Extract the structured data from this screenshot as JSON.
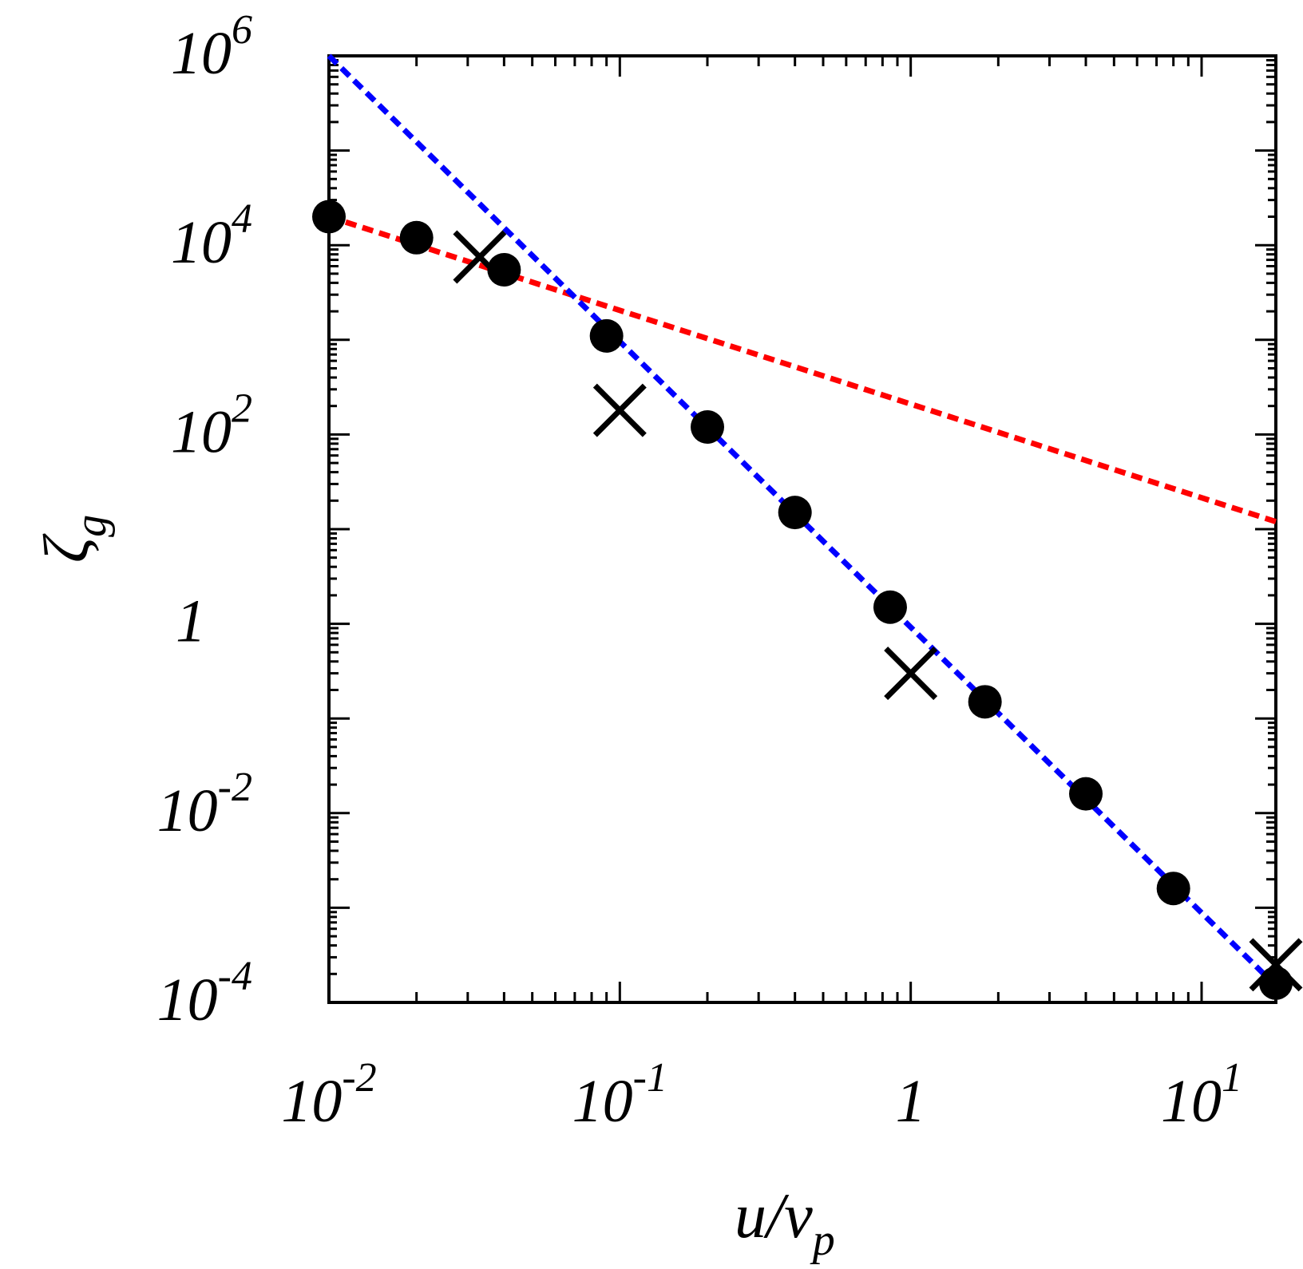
{
  "chart_data": {
    "type": "scatter",
    "x_scale": "log",
    "y_scale": "log",
    "xlim": [
      0.01,
      18
    ],
    "ylim": [
      0.0001,
      1000000
    ],
    "grid": false,
    "legend": "none",
    "xlabel": {
      "main": "u/v",
      "sub": "p"
    },
    "ylabel": {
      "main": "ζ",
      "sub": "g"
    },
    "x_ticks": [
      {
        "value": 0.01,
        "base": "10",
        "exp": "-2"
      },
      {
        "value": 0.1,
        "base": "10",
        "exp": "-1"
      },
      {
        "value": 1,
        "base": "1",
        "exp": ""
      },
      {
        "value": 10,
        "base": "10",
        "exp": "1"
      }
    ],
    "y_ticks": [
      {
        "value": 0.0001,
        "base": "10",
        "exp": "-4"
      },
      {
        "value": 0.01,
        "base": "10",
        "exp": "-2"
      },
      {
        "value": 1,
        "base": "1",
        "exp": ""
      },
      {
        "value": 100,
        "base": "10",
        "exp": "2"
      },
      {
        "value": 10000,
        "base": "10",
        "exp": "4"
      },
      {
        "value": 1000000,
        "base": "10",
        "exp": "6"
      }
    ],
    "series": [
      {
        "marker": "circle",
        "color": "#000000",
        "points": [
          {
            "x": 0.01,
            "y": 20000
          },
          {
            "x": 0.02,
            "y": 12000
          },
          {
            "x": 0.04,
            "y": 5500
          },
          {
            "x": 0.09,
            "y": 1100
          },
          {
            "x": 0.2,
            "y": 120
          },
          {
            "x": 0.4,
            "y": 15
          },
          {
            "x": 0.85,
            "y": 1.5
          },
          {
            "x": 1.8,
            "y": 0.15
          },
          {
            "x": 4,
            "y": 0.016
          },
          {
            "x": 8,
            "y": 0.0016
          },
          {
            "x": 18,
            "y": 0.00016
          }
        ]
      },
      {
        "marker": "x",
        "color": "#000000",
        "points": [
          {
            "x": 0.033,
            "y": 7500
          },
          {
            "x": 0.1,
            "y": 180
          },
          {
            "x": 1,
            "y": 0.3
          },
          {
            "x": 18,
            "y": 0.00025
          }
        ]
      }
    ],
    "fit_lines": [
      {
        "color": "#ff0000",
        "style": "dashed",
        "points": [
          {
            "x": 0.01,
            "y": 20000
          },
          {
            "x": 18,
            "y": 12
          }
        ]
      },
      {
        "color": "#0000ff",
        "style": "dashed",
        "points": [
          {
            "x": 0.01,
            "y": 1000000
          },
          {
            "x": 18,
            "y": 0.00015
          }
        ]
      }
    ]
  }
}
